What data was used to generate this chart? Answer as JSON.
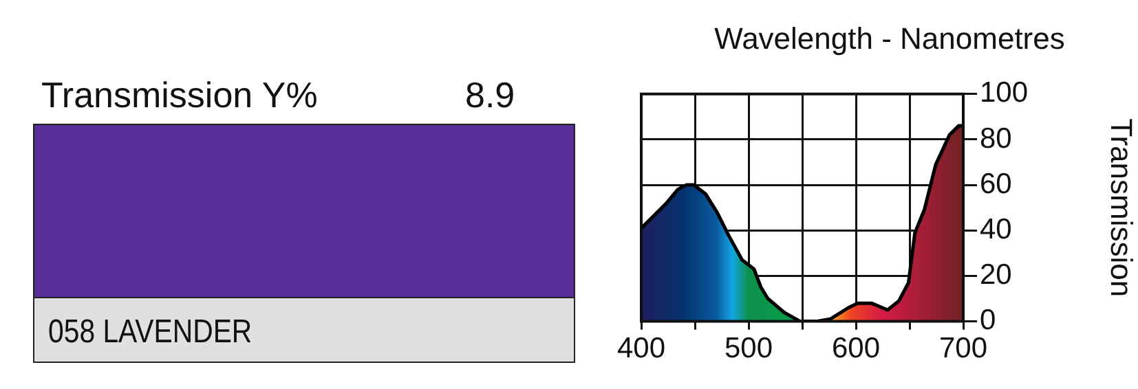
{
  "chart_data": {
    "type": "area",
    "title": "Wavelength - Nanometres",
    "ylabel": "Transmission",
    "annotations": [
      "Transmission Y%",
      "8.9",
      "058 LAVENDER"
    ],
    "x": [
      400,
      410.7,
      423.5,
      434,
      442,
      449,
      460,
      470.6,
      481.2,
      494,
      505,
      511.5,
      518,
      533,
      548,
      563,
      576,
      593,
      601.7,
      614.5,
      629.5,
      640,
      649,
      655,
      663.7,
      674.4,
      687.2,
      695.7,
      700
    ],
    "series": [
      {
        "color": "#000000",
        "values": [
          41,
          46,
          52,
          58,
          60,
          60,
          56,
          48,
          38,
          27,
          23,
          15,
          10,
          4,
          0,
          0,
          1,
          6,
          8,
          8,
          5,
          9,
          17,
          39,
          49,
          69,
          82,
          86,
          86
        ]
      }
    ],
    "xlim": [
      400,
      700
    ],
    "xticks": [
      400,
      {
        "value": 450,
        "label": null
      },
      500,
      {
        "value": 550,
        "label": null
      },
      600,
      {
        "value": 650,
        "label": null
      },
      700
    ],
    "ylim": [
      0,
      100
    ],
    "yticks": [
      0,
      20,
      40,
      60,
      80,
      100
    ],
    "grid": true,
    "legend": false
  }
}
